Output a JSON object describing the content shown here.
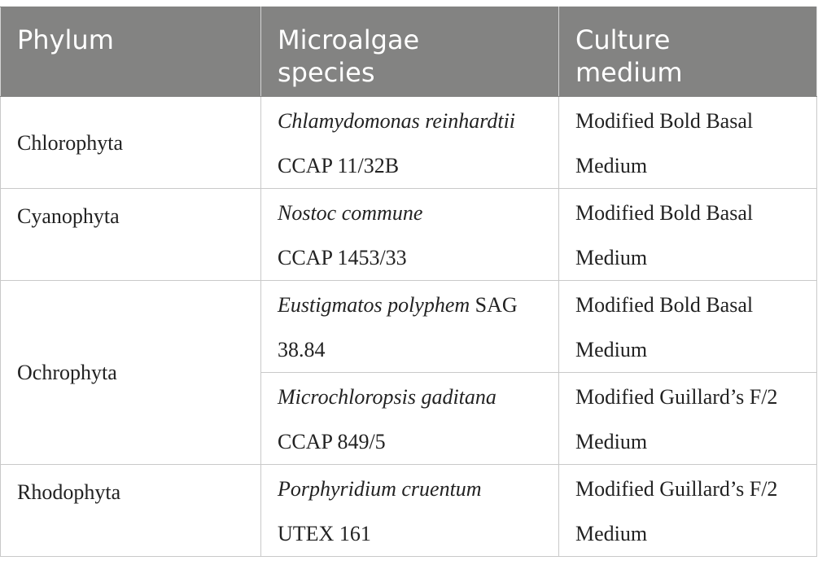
{
  "headers": [
    "Phylum",
    "Microalgae species",
    "Culture medium"
  ],
  "header_lines": {
    "phylum": [
      "Phylum"
    ],
    "species": [
      "Microalgae",
      "species"
    ],
    "medium": [
      "Culture",
      "medium"
    ]
  },
  "rows": [
    {
      "phylum": "Chlorophyta",
      "species_name": "Chlamydomonas reinhardtii",
      "species_strain": "CCAP 11/32B",
      "medium_line1": "Modified Bold Basal",
      "medium_line2": "Medium"
    },
    {
      "phylum": "Cyanophyta",
      "species_name": "Nostoc commune",
      "species_strain": "CCAP 1453/33",
      "medium_line1": "Modified Bold Basal",
      "medium_line2": "Medium"
    },
    {
      "phylum": "Ochrophyta",
      "species_name": "Eustigmatos polyphem",
      "species_strain_inline": "SAG",
      "species_strain": "38.84",
      "medium_line1": "Modified Bold Basal",
      "medium_line2": "Medium"
    },
    {
      "phylum": "",
      "species_name": "Microchloropsis gaditana",
      "species_strain": "CCAP 849/5",
      "medium_line1": "Modified Guillard’s F/2",
      "medium_line2": "Medium"
    },
    {
      "phylum": "Rhodophyta",
      "species_name": "Porphyridium cruentum",
      "species_strain": "UTEX 161",
      "medium_line1": "Modified Guillard’s F/2",
      "medium_line2": "Medium"
    }
  ]
}
